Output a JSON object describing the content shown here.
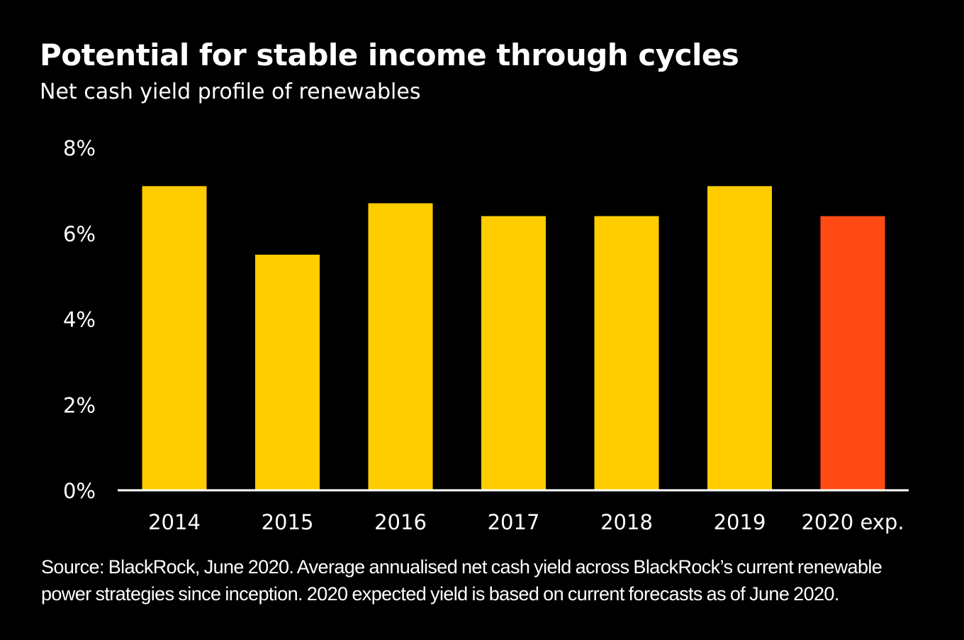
{
  "title": "Potential for stable income through cycles",
  "subtitle": "Net cash yield profile of renewables",
  "source": "Source: BlackRock, June 2020. Average annualised net cash yield across BlackRock’s current renewable power strategies since inception. 2020 expected yield is based on current forecasts as of June 2020.",
  "colors": {
    "background": "#000000",
    "text": "#ffffff",
    "bar": "#ffcc00",
    "highlight_bar": "#ff4a14",
    "axis": "#ffffff"
  },
  "chart_data": {
    "type": "bar",
    "title": "Potential for stable income through cycles",
    "subtitle": "Net cash yield profile of renewables",
    "xlabel": "",
    "ylabel": "",
    "categories": [
      "2014",
      "2015",
      "2016",
      "2017",
      "2018",
      "2019",
      "2020 exp."
    ],
    "values": [
      7.1,
      5.5,
      6.7,
      6.4,
      6.4,
      7.1,
      6.4
    ],
    "highlight_index": 6,
    "ylim": [
      0,
      8
    ],
    "yticks": [
      0,
      2,
      4,
      6,
      8
    ],
    "ytick_labels": [
      "0%",
      "2%",
      "4%",
      "6%",
      "8%"
    ],
    "grid": false,
    "legend": "none"
  }
}
